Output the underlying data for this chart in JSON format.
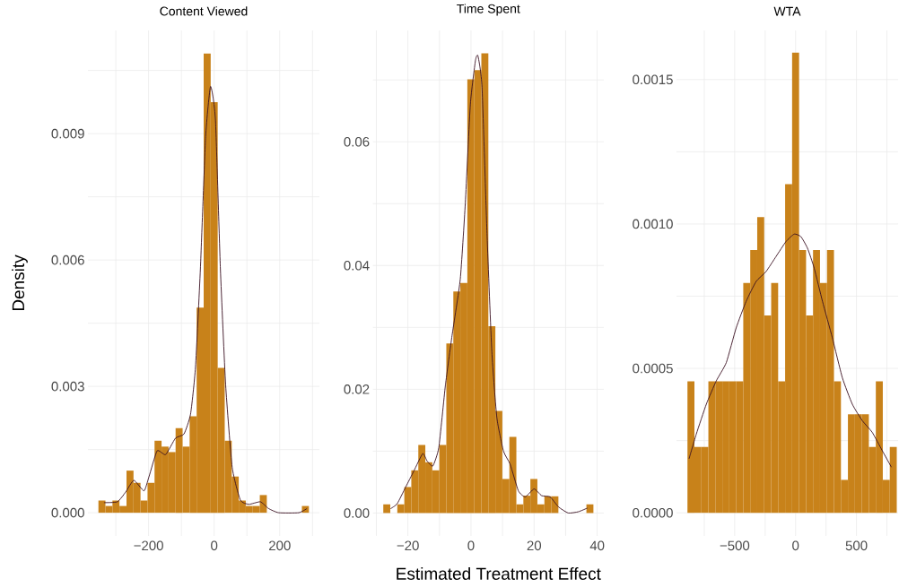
{
  "chart_data": [
    {
      "type": "histogram",
      "title": "Content Viewed",
      "ylabel": "Density",
      "grid": true,
      "xlim": [
        -385,
        321
      ],
      "ylim": [
        -0.00055,
        0.01145
      ],
      "xticks": [
        {
          "value": -300,
          "label": null
        },
        {
          "value": -200,
          "label": "−200"
        },
        {
          "value": -100,
          "label": null
        },
        {
          "value": 0,
          "label": "0"
        },
        {
          "value": 100,
          "label": null
        },
        {
          "value": 200,
          "label": "200"
        },
        {
          "value": 300,
          "label": null
        }
      ],
      "yticks": [
        {
          "value": 0,
          "label": "0.000"
        },
        {
          "value": 0.0015,
          "label": null
        },
        {
          "value": 0.003,
          "label": "0.003"
        },
        {
          "value": 0.0045,
          "label": null
        },
        {
          "value": 0.006,
          "label": "0.006"
        },
        {
          "value": 0.0075,
          "label": null
        },
        {
          "value": 0.009,
          "label": "0.009"
        },
        {
          "value": 0.0105,
          "label": null
        }
      ],
      "series": [
        {
          "color": "#c8821a",
          "bins": [
            -353.0,
            -331.6,
            -310.2,
            -288.8,
            -267.4,
            -246.0,
            -224.6,
            -203.2,
            -181.8,
            -160.4,
            -139.0,
            -117.6,
            -96.2,
            -74.8,
            -53.4,
            -32.0,
            -10.6,
            10.8,
            32.2,
            53.6,
            75.0,
            96.4,
            117.8,
            139.2,
            160.6,
            182.0,
            203.4,
            224.8,
            246.2,
            267.6,
            289.0
          ],
          "values": [
            0.00029,
            0.00016,
            0.00029,
            0.00016,
            0.001,
            0.00071,
            0.00029,
            0.00071,
            0.00171,
            0.00157,
            0.00144,
            0.00201,
            0.00157,
            0.00229,
            0.00487,
            0.0109,
            0.00975,
            0.00344,
            0.00171,
            0.00086,
            0.00029,
            0.00016,
            0.00016,
            0.00042,
            0,
            0,
            0,
            0,
            0,
            0.00016
          ]
        },
        {
          "type": "line",
          "color": "#3a1020",
          "x": [
            -336,
            -295,
            -270,
            -245,
            -214,
            -199,
            -174,
            -148,
            -118,
            -92,
            -72,
            -57,
            -42,
            -26,
            -11,
            4,
            19,
            35,
            55,
            80,
            106,
            141,
            166,
            197,
            258,
            283
          ],
          "values": [
            0.00024,
            0.00026,
            0.00049,
            0.00077,
            0.00052,
            0.00085,
            0.00147,
            0.00138,
            0.00177,
            0.00187,
            0.00234,
            0.00345,
            0.00579,
            0.00893,
            0.01012,
            0.00932,
            0.00579,
            0.00304,
            0.00108,
            0.0003,
            0.0002,
            0.00026,
            0.0001,
            0,
            0,
            0.0001
          ]
        }
      ]
    },
    {
      "type": "histogram",
      "title": "Time Spent",
      "xlabel": "Estimated Treatment Effect",
      "grid": true,
      "xlim": [
        -31.1,
        42.1
      ],
      "ylim": [
        -0.0037,
        0.078
      ],
      "xticks": [
        {
          "value": -30,
          "label": null
        },
        {
          "value": -20,
          "label": "−20"
        },
        {
          "value": -10,
          "label": null
        },
        {
          "value": 0,
          "label": "0"
        },
        {
          "value": 10,
          "label": null
        },
        {
          "value": 20,
          "label": "20"
        },
        {
          "value": 30,
          "label": null
        },
        {
          "value": 40,
          "label": "40"
        }
      ],
      "yticks": [
        {
          "value": 0,
          "label": "0.00"
        },
        {
          "value": 0.01,
          "label": null
        },
        {
          "value": 0.02,
          "label": "0.02"
        },
        {
          "value": 0.03,
          "label": null
        },
        {
          "value": 0.04,
          "label": "0.04"
        },
        {
          "value": 0.05,
          "label": null
        },
        {
          "value": 0.06,
          "label": "0.06"
        },
        {
          "value": 0.07,
          "label": null
        }
      ],
      "series": [
        {
          "color": "#c8821a",
          "bins": [
            -27.8,
            -25.58,
            -23.36,
            -21.14,
            -18.92,
            -16.7,
            -14.48,
            -12.26,
            -10.04,
            -7.82,
            -5.6,
            -3.38,
            -1.16,
            1.06,
            3.28,
            5.5,
            7.72,
            9.94,
            12.16,
            14.38,
            16.6,
            18.82,
            21.04,
            23.26,
            25.48,
            27.7,
            29.92,
            32.14,
            34.36,
            36.58,
            38.8
          ],
          "values": [
            0.0014,
            0,
            0.0014,
            0.0042,
            0.0069,
            0.011,
            0.0082,
            0.0069,
            0.011,
            0.0274,
            0.0358,
            0.0372,
            0.0701,
            0.0716,
            0.0743,
            0.0302,
            0.0165,
            0.0055,
            0.0123,
            0.0014,
            0.0028,
            0.0055,
            0.0014,
            0.0027,
            0.0027,
            0,
            0,
            0,
            0,
            0.0014
          ]
        },
        {
          "type": "line",
          "color": "#3a1020",
          "x": [
            -25.5,
            -23.4,
            -20.7,
            -18.1,
            -15.3,
            -13.9,
            -12.1,
            -10.2,
            -8.1,
            -6.0,
            -3.4,
            -1.8,
            -0.2,
            1.4,
            2.2,
            3.5,
            5.1,
            6.6,
            8.2,
            10.3,
            12.4,
            15.0,
            17.2,
            20.0,
            22.4,
            25.1,
            27.7,
            30.8,
            34.0,
            36.9
          ],
          "values": [
            0.0007,
            0.0015,
            0.0042,
            0.0068,
            0.0096,
            0.0084,
            0.0076,
            0.0106,
            0.0207,
            0.0287,
            0.0378,
            0.0501,
            0.0661,
            0.0731,
            0.0739,
            0.0688,
            0.0448,
            0.0261,
            0.0154,
            0.01,
            0.0079,
            0.0036,
            0.0026,
            0.0039,
            0.0028,
            0.0026,
            0.001,
            0,
            0.0002,
            0.0008
          ]
        }
      ]
    },
    {
      "type": "histogram",
      "title": "WTA",
      "grid": true,
      "xlim": [
        -978,
        842
      ],
      "ylim": [
        -8e-05,
        0.00167
      ],
      "xticks": [
        {
          "value": -750,
          "label": null
        },
        {
          "value": -500,
          "label": "−500"
        },
        {
          "value": -250,
          "label": null
        },
        {
          "value": 0,
          "label": "0"
        },
        {
          "value": 250,
          "label": null
        },
        {
          "value": 500,
          "label": "500"
        },
        {
          "value": 750,
          "label": null
        }
      ],
      "yticks": [
        {
          "value": 0,
          "label": "0.0000"
        },
        {
          "value": 0.00025,
          "label": null
        },
        {
          "value": 0.0005,
          "label": "0.0005"
        },
        {
          "value": 0.00075,
          "label": null
        },
        {
          "value": 0.001,
          "label": "0.0010"
        },
        {
          "value": 0.00125,
          "label": null
        },
        {
          "value": 0.0015,
          "label": "0.0015"
        }
      ],
      "series": [
        {
          "color": "#c8821a",
          "bins": [
            -888.0,
            -830.7,
            -773.4,
            -716.1,
            -658.8,
            -601.5,
            -544.2,
            -486.9,
            -429.6,
            -372.3,
            -315.0,
            -257.7,
            -200.4,
            -143.1,
            -85.8,
            -28.5,
            28.8,
            86.1,
            143.4,
            200.7,
            258.0,
            315.3,
            372.6,
            429.9,
            487.2,
            544.5,
            601.8,
            659.1,
            716.4,
            773.7,
            831.0
          ],
          "values": [
            0.000455,
            0.000228,
            0.000228,
            0.000455,
            0.000455,
            0.000455,
            0.000455,
            0.000455,
            0.000796,
            0.00091,
            0.001024,
            0.000683,
            0.000796,
            0.000455,
            0.001138,
            0.001593,
            0.00091,
            0.000683,
            0.00091,
            0.000796,
            0.00091,
            0.000455,
            0.000114,
            0.000341,
            0.000341,
            0.000341,
            0.000228,
            0.000455,
            0.000114,
            0.000228
          ]
        },
        {
          "type": "line",
          "color": "#3a1020",
          "x": [
            -875,
            -815,
            -733,
            -651,
            -569,
            -488,
            -406,
            -324,
            -243,
            -161,
            -79,
            -11,
            44,
            98,
            153,
            221,
            302,
            384,
            466,
            548,
            629,
            711,
            787
          ],
          "values": [
            0.000187,
            0.000273,
            0.000376,
            0.000457,
            0.00052,
            0.00064,
            0.000732,
            0.000801,
            0.000835,
            0.000887,
            0.000939,
            0.000965,
            0.000956,
            0.000916,
            0.000847,
            0.000732,
            0.000606,
            0.000468,
            0.000376,
            0.000319,
            0.000279,
            0.000216,
            0.000158
          ]
        }
      ]
    }
  ]
}
